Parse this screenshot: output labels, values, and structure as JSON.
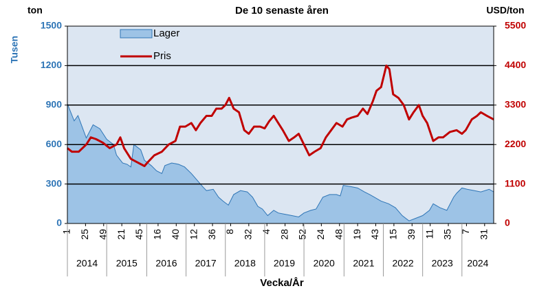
{
  "chart_data": {
    "type": "line",
    "title": "De 10 senaste åren",
    "y_unit": "ton",
    "y_title": "Tusen",
    "y2_unit": "USD/ton",
    "x_label": "Vecka/År",
    "xlim": [
      0,
      564
    ],
    "xticks": [
      {
        "value": 0,
        "label": "1"
      },
      {
        "value": 24,
        "label": "25"
      },
      {
        "value": 48,
        "label": "49"
      },
      {
        "value": 72,
        "label": "21"
      },
      {
        "value": 96,
        "label": "45"
      },
      {
        "value": 120,
        "label": "16"
      },
      {
        "value": 144,
        "label": "40"
      },
      {
        "value": 168,
        "label": "12"
      },
      {
        "value": 192,
        "label": "36"
      },
      {
        "value": 216,
        "label": "8"
      },
      {
        "value": 240,
        "label": "32"
      },
      {
        "value": 264,
        "label": "4"
      },
      {
        "value": 288,
        "label": "28"
      },
      {
        "value": 312,
        "label": "52"
      },
      {
        "value": 336,
        "label": "24"
      },
      {
        "value": 360,
        "label": "48"
      },
      {
        "value": 384,
        "label": "19"
      },
      {
        "value": 408,
        "label": "43"
      },
      {
        "value": 432,
        "label": "15"
      },
      {
        "value": 456,
        "label": "39"
      },
      {
        "value": 480,
        "label": "11"
      },
      {
        "value": 504,
        "label": "35"
      },
      {
        "value": 528,
        "label": "7"
      },
      {
        "value": 552,
        "label": "31"
      }
    ],
    "xgroups": [
      {
        "label": "2014",
        "start": 0,
        "end": 52
      },
      {
        "label": "2015",
        "start": 52,
        "end": 105
      },
      {
        "label": "2016",
        "start": 105,
        "end": 157
      },
      {
        "label": "2017",
        "start": 157,
        "end": 209
      },
      {
        "label": "2018",
        "start": 209,
        "end": 261
      },
      {
        "label": "2019",
        "start": 261,
        "end": 313
      },
      {
        "label": "2020",
        "start": 313,
        "end": 366
      },
      {
        "label": "2021",
        "start": 366,
        "end": 418
      },
      {
        "label": "2022",
        "start": 418,
        "end": 470
      },
      {
        "label": "2023",
        "start": 470,
        "end": 522
      },
      {
        "label": "2024",
        "start": 522,
        "end": 564
      }
    ],
    "ylim": [
      0,
      1500
    ],
    "yticks": [
      0,
      300,
      600,
      900,
      1200,
      1500
    ],
    "y2lim": [
      0,
      5500
    ],
    "y2ticks": [
      0,
      1100,
      2200,
      3300,
      4400,
      5500
    ],
    "grid": true,
    "legend": "upper left",
    "series": [
      {
        "name": "Lager",
        "type": "area",
        "color": "#9dc3e6",
        "edge_color": "#2e75b6",
        "x": [
          0,
          9,
          14,
          25,
          34,
          43,
          52,
          61,
          65,
          73,
          79,
          84,
          88,
          97,
          102,
          111,
          118,
          125,
          129,
          138,
          147,
          155,
          164,
          170,
          179,
          184,
          193,
          200,
          206,
          213,
          220,
          229,
          238,
          245,
          252,
          258,
          265,
          273,
          279,
          288,
          297,
          306,
          313,
          322,
          329,
          338,
          347,
          356,
          361,
          365,
          375,
          384,
          393,
          400,
          406,
          415,
          425,
          434,
          443,
          452,
          461,
          470,
          479,
          484,
          493,
          502,
          511,
          515,
          522,
          529,
          538,
          547,
          558,
          564
        ],
        "values": [
          910,
          780,
          820,
          650,
          750,
          720,
          640,
          600,
          520,
          460,
          450,
          430,
          600,
          560,
          480,
          440,
          400,
          380,
          440,
          460,
          450,
          430,
          380,
          340,
          280,
          250,
          260,
          200,
          170,
          140,
          220,
          250,
          240,
          200,
          130,
          110,
          60,
          100,
          80,
          70,
          60,
          50,
          80,
          100,
          110,
          200,
          220,
          220,
          210,
          290,
          280,
          270,
          240,
          220,
          200,
          170,
          150,
          120,
          60,
          20,
          40,
          60,
          100,
          150,
          120,
          100,
          200,
          230,
          270,
          260,
          250,
          240,
          260,
          240
        ]
      },
      {
        "name": "Pris",
        "type": "line",
        "axis": "y2",
        "color": "#c00000",
        "x": [
          0,
          6,
          15,
          25,
          31,
          38,
          47,
          56,
          65,
          70,
          75,
          84,
          93,
          102,
          106,
          115,
          125,
          134,
          143,
          149,
          156,
          164,
          170,
          176,
          184,
          191,
          197,
          204,
          209,
          214,
          220,
          227,
          234,
          240,
          247,
          255,
          261,
          267,
          273,
          279,
          285,
          293,
          300,
          306,
          313,
          320,
          327,
          335,
          342,
          349,
          356,
          364,
          370,
          376,
          384,
          391,
          397,
          404,
          409,
          415,
          422,
          426,
          431,
          438,
          445,
          452,
          458,
          465,
          470,
          476,
          484,
          491,
          497,
          506,
          515,
          522,
          527,
          535,
          542,
          547,
          555,
          564
        ],
        "values": [
          2100,
          2000,
          2000,
          2200,
          2400,
          2350,
          2250,
          2100,
          2200,
          2400,
          2100,
          1800,
          1700,
          1600,
          1700,
          1900,
          2000,
          2200,
          2300,
          2700,
          2700,
          2800,
          2600,
          2800,
          3000,
          3000,
          3200,
          3200,
          3300,
          3500,
          3200,
          3100,
          2600,
          2500,
          2700,
          2700,
          2650,
          2850,
          3000,
          2800,
          2600,
          2300,
          2400,
          2500,
          2200,
          1900,
          2000,
          2100,
          2400,
          2600,
          2800,
          2700,
          2900,
          2950,
          3000,
          3200,
          3050,
          3400,
          3700,
          3800,
          4400,
          4300,
          3600,
          3500,
          3300,
          2900,
          3100,
          3300,
          3000,
          2800,
          2300,
          2400,
          2400,
          2550,
          2600,
          2500,
          2600,
          2900,
          3000,
          3100,
          3000,
          2900
        ]
      }
    ]
  }
}
